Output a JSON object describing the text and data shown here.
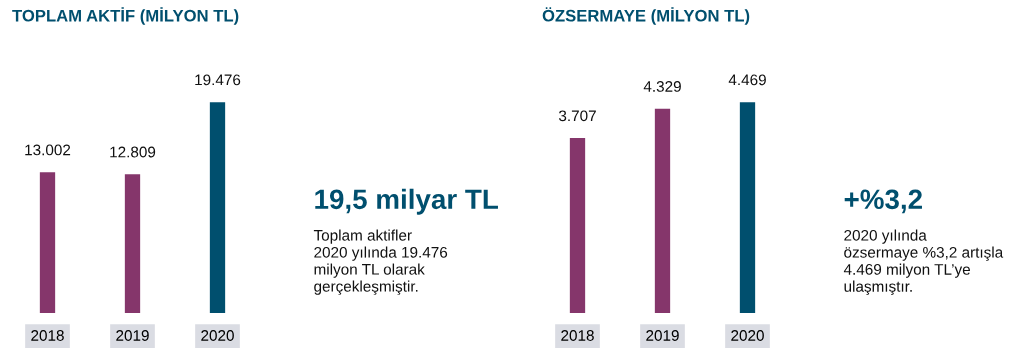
{
  "chart_data": [
    {
      "type": "bar",
      "title": "TOPLAM AKTİF (MİLYON TL)",
      "categories": [
        "2018",
        "2019",
        "2020"
      ],
      "values": [
        13002,
        12809,
        19476
      ],
      "value_labels": [
        "13.002",
        "12.809",
        "19.476"
      ],
      "colors": [
        "#85366b",
        "#85366b",
        "#004f6e"
      ],
      "annotations": [
        "19,5 milyar TL",
        "Toplam aktifler\n2020 yılında 19.476\nmilyon TL olarak\ngerçekleşmiştir."
      ]
    },
    {
      "type": "bar",
      "title": "ÖZSERMAYE (MİLYON TL)",
      "categories": [
        "2018",
        "2019",
        "2020"
      ],
      "values": [
        3707,
        4329,
        4469
      ],
      "value_labels": [
        "3.707",
        "4.329",
        "4.469"
      ],
      "colors": [
        "#85366b",
        "#85366b",
        "#004f6e"
      ],
      "annotations": [
        "+%3,2",
        "2020 yılında\nözsermaye %3,2 artışla\n4.469 milyon TL’ye\nulaşmıştır."
      ]
    }
  ]
}
